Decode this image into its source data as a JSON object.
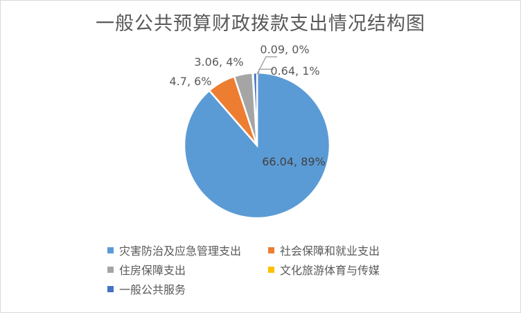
{
  "chart_data": {
    "type": "pie",
    "title": "一般公共预算财政拨款支出情况结构图",
    "categories": [
      "灾害防治及应急管理支出",
      "社会保障和就业支出",
      "住房保障支出",
      "文化旅游体育与传媒",
      "一般公共服务"
    ],
    "values": [
      66.04,
      4.7,
      3.06,
      0.09,
      0.64
    ],
    "percent_labels": [
      "89%",
      "6%",
      "4%",
      "0%",
      "1%"
    ],
    "data_labels": [
      "66.04, 89%",
      "4.7, 6%",
      "3.06, 4%",
      "0.09, 0%",
      "0.64, 1%"
    ],
    "colors": [
      "#5b9bd5",
      "#ed7d31",
      "#a5a5a5",
      "#ffc000",
      "#4472c4"
    ],
    "legend_position": "bottom",
    "start_angle": "top, clockwise"
  }
}
